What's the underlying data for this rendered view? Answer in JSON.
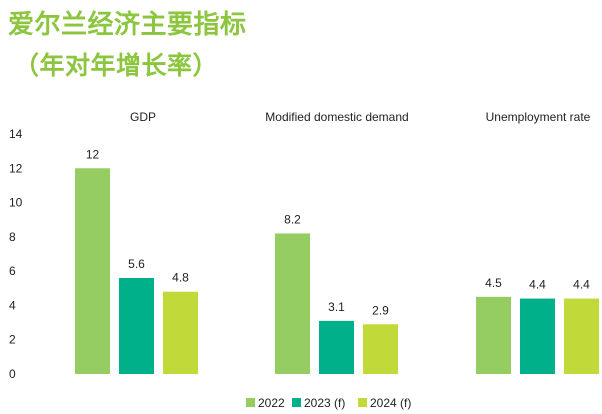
{
  "title": {
    "line1": "爱尔兰经济主要指标",
    "line2": "（年对年增长率）"
  },
  "colors": {
    "title": "#8cc63f",
    "series": [
      "#96cd62",
      "#00b08a",
      "#c2d93a"
    ]
  },
  "chart_data": {
    "type": "bar",
    "categories": [
      "GDP",
      "Modified domestic demand",
      "Unemployment rate"
    ],
    "series": [
      {
        "name": "2022",
        "values": [
          12,
          8.2,
          4.5
        ]
      },
      {
        "name": "2023 (f)",
        "values": [
          5.6,
          3.1,
          4.4
        ]
      },
      {
        "name": "2024 (f)",
        "values": [
          4.8,
          2.9,
          4.4
        ]
      }
    ],
    "data_labels": [
      [
        "12",
        "8.2",
        "4.5"
      ],
      [
        "5.6",
        "3.1",
        "4.4"
      ],
      [
        "4.8",
        "2.9",
        "4.4"
      ]
    ],
    "y_ticks": [
      "0",
      "2",
      "4",
      "6",
      "8",
      "10",
      "12",
      "14"
    ],
    "ylim": [
      0,
      14
    ],
    "grid": false,
    "legend_position": "bottom"
  }
}
